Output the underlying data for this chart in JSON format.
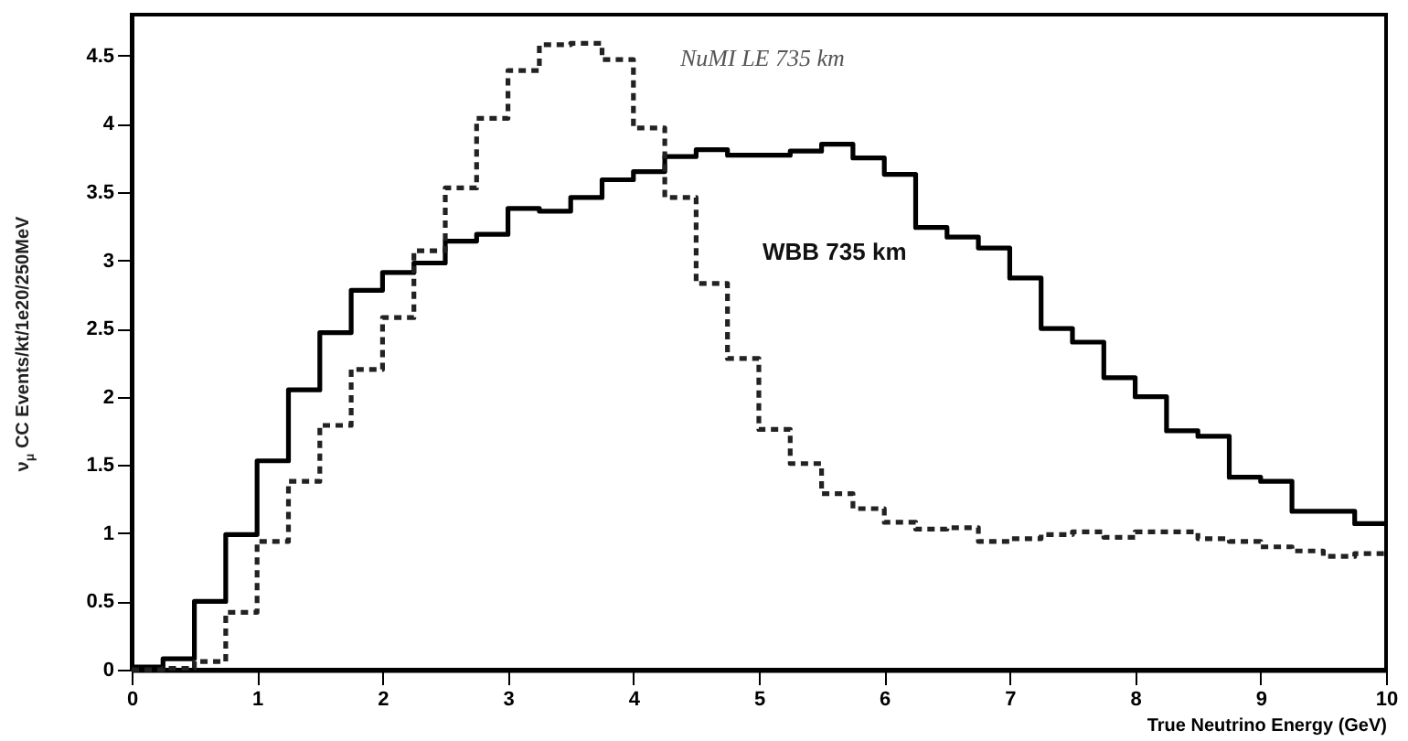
{
  "chart_data": {
    "type": "histogram",
    "xlabel": "True Neutrino Energy (GeV)",
    "ylabel": "ν$_{μ}$ CC Events/kt/1e20/250MeV",
    "bins": [
      0,
      0.25,
      0.5,
      0.75,
      1,
      1.25,
      1.5,
      1.75,
      2,
      2.25,
      2.5,
      2.75,
      3,
      3.25,
      3.5,
      3.75,
      4,
      4.25,
      4.5,
      4.75,
      5,
      5.25,
      5.5,
      5.75,
      6,
      6.25,
      6.5,
      6.75,
      7,
      7.25,
      7.5,
      7.75,
      8,
      8.25,
      8.5,
      8.75,
      9,
      9.25,
      9.5,
      9.75,
      10
    ],
    "series": [
      {
        "name": "WBB 735 km",
        "color": "#000000",
        "line_style": "solid",
        "values": [
          0.02,
          0.08,
          0.5,
          0.99,
          1.53,
          2.05,
          2.47,
          2.78,
          2.91,
          2.98,
          3.14,
          3.19,
          3.38,
          3.36,
          3.46,
          3.59,
          3.65,
          3.76,
          3.81,
          3.77,
          3.77,
          3.8,
          3.85,
          3.75,
          3.63,
          3.24,
          3.17,
          3.09,
          2.87,
          2.5,
          2.4,
          2.14,
          2.0,
          1.75,
          1.71,
          1.41,
          1.38,
          1.16,
          1.16,
          1.07
        ]
      },
      {
        "name": "NuMI LE 735 km",
        "color": "#222222",
        "line_style": "dashed",
        "values": [
          0.0,
          0.01,
          0.06,
          0.42,
          0.94,
          1.38,
          1.79,
          2.2,
          2.58,
          3.07,
          3.53,
          4.04,
          4.39,
          4.58,
          4.59,
          4.47,
          3.97,
          3.46,
          2.83,
          2.28,
          1.76,
          1.51,
          1.29,
          1.18,
          1.08,
          1.03,
          1.04,
          0.94,
          0.96,
          0.99,
          1.01,
          0.97,
          1.01,
          1.01,
          0.96,
          0.94,
          0.9,
          0.87,
          0.83,
          0.85
        ]
      }
    ],
    "xlim": [
      0,
      10
    ],
    "xticks": [
      0,
      1,
      2,
      3,
      4,
      5,
      6,
      7,
      8,
      9,
      10
    ],
    "ylim": [
      0,
      4.8
    ],
    "yticks": [
      0,
      0.5,
      1,
      1.5,
      2,
      2.5,
      3,
      3.5,
      4,
      4.5
    ]
  }
}
